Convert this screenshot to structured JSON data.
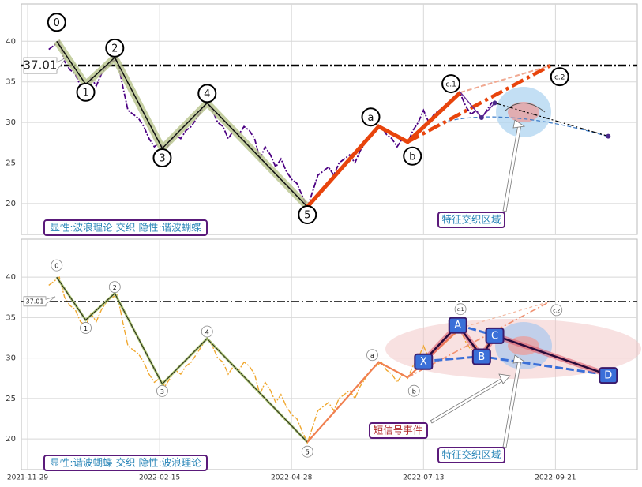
{
  "chart_data": [
    {
      "type": "line",
      "x": [
        8,
        10,
        12,
        14,
        16,
        18,
        20,
        22,
        24,
        26,
        28,
        30,
        32,
        34,
        36,
        38,
        40,
        42,
        44,
        46,
        48,
        50,
        52,
        54,
        56,
        58,
        60,
        62,
        64,
        66,
        68,
        70,
        72,
        74,
        76,
        78,
        80,
        82,
        84,
        86,
        88,
        90,
        92,
        94,
        96,
        98,
        100,
        102,
        104,
        106,
        108,
        110,
        112,
        114,
        116,
        118,
        120,
        122,
        124,
        126,
        128,
        130,
        132,
        134,
        136,
        138,
        140,
        142,
        144,
        146,
        148,
        150,
        152,
        154,
        156,
        158,
        160,
        162,
        164,
        166,
        168,
        170,
        172,
        174,
        176
      ],
      "series": [
        {
          "color": "#4b0082",
          "values": [
            39,
            39.5,
            40,
            37.5,
            36.5,
            36,
            34.5,
            34,
            35.5,
            34.5,
            36,
            37,
            37.5,
            37.8,
            34.5,
            31.5,
            31,
            30.5,
            29.5,
            28,
            27,
            27.5,
            26.5,
            27.5,
            28.5,
            28,
            29,
            29.5,
            30.5,
            31.5,
            32.5,
            31.5,
            30,
            29.5,
            28,
            29,
            28.5,
            29.5,
            29,
            28,
            25.5,
            27,
            26,
            24.5,
            25.5,
            24,
            23,
            22.5,
            21,
            19.5,
            21.5,
            23.5,
            24,
            24.5,
            23.5,
            25,
            25.5,
            26,
            25,
            26.5,
            27.5,
            28.5,
            29,
            29.5,
            28.5,
            28,
            27,
            28,
            27.5,
            29,
            30,
            31.5,
            30,
            31,
            31.5,
            32,
            32.5,
            33,
            33.5,
            32,
            31,
            31.5,
            30.5,
            31.5,
            32.5
          ]
        }
      ],
      "waves": {
        "labels": [
          "0",
          "1",
          "2",
          "3",
          "4",
          "5",
          "a",
          "b",
          "c.1",
          "c.2"
        ],
        "x": [
          11,
          22,
          33,
          51,
          68,
          106,
          133,
          144,
          164,
          198
        ],
        "values": [
          40,
          34.7,
          38,
          26.8,
          32.4,
          19.6,
          29.5,
          27.6,
          33.7,
          37
        ]
      },
      "harmonic": {
        "x": [
          164,
          172,
          177,
          220
        ],
        "values": [
          33.7,
          30.6,
          32.4,
          28.3
        ]
      },
      "level": 37.01,
      "notes": [
        "显性:波浪理论 交织 隐性:谐波蝴蝶",
        "特征交织区域"
      ],
      "xlim": [
        -2.4,
        231
      ],
      "ylim": [
        16.2,
        44.6
      ],
      "yticks": [
        20,
        25,
        30,
        35,
        40
      ],
      "xticks": [
        0,
        50,
        100,
        150,
        200
      ],
      "grid": true
    },
    {
      "type": "line",
      "x": [
        8,
        10,
        12,
        14,
        16,
        18,
        20,
        22,
        24,
        26,
        28,
        30,
        32,
        34,
        36,
        38,
        40,
        42,
        44,
        46,
        48,
        50,
        52,
        54,
        56,
        58,
        60,
        62,
        64,
        66,
        68,
        70,
        72,
        74,
        76,
        78,
        80,
        82,
        84,
        86,
        88,
        90,
        92,
        94,
        96,
        98,
        100,
        102,
        104,
        106,
        108,
        110,
        112,
        114,
        116,
        118,
        120,
        122,
        124,
        126,
        128,
        130,
        132,
        134,
        136,
        138,
        140,
        142,
        144,
        146,
        148,
        150,
        152,
        154,
        156,
        158,
        160,
        162,
        164,
        166,
        168,
        170,
        172,
        174,
        176
      ],
      "series": [
        {
          "color": "#f0a830",
          "values": [
            39,
            39.5,
            40,
            37.5,
            36.5,
            36,
            34.5,
            34,
            35.5,
            34.5,
            36,
            37,
            37.5,
            37.8,
            34.5,
            31.5,
            31,
            30.5,
            29.5,
            28,
            27,
            27.5,
            26.5,
            27.5,
            28.5,
            28,
            29,
            29.5,
            30.5,
            31.5,
            32.5,
            31.5,
            30,
            29.5,
            28,
            29,
            28.5,
            29.5,
            29,
            28,
            25.5,
            27,
            26,
            24.5,
            25.5,
            24,
            23,
            22.5,
            21,
            19.5,
            21.5,
            23.5,
            24,
            24.5,
            23.5,
            25,
            25.5,
            26,
            25,
            26.5,
            27.5,
            28.5,
            29,
            29.5,
            28.5,
            28,
            27,
            28,
            27.5,
            29,
            30,
            31.5,
            30,
            31,
            31.5,
            32,
            32.5,
            33,
            33.5,
            32,
            31,
            31.5,
            30.5,
            31.5,
            32.5
          ]
        }
      ],
      "waves": {
        "labels": [
          "0",
          "1",
          "2",
          "3",
          "4",
          "5",
          "a",
          "b",
          "c.1",
          "c.2"
        ],
        "x": [
          11,
          22,
          33,
          51,
          68,
          106,
          133,
          144,
          164,
          198
        ],
        "values": [
          40,
          34.7,
          38,
          26.8,
          32.4,
          19.6,
          29.5,
          27.6,
          33.7,
          37
        ]
      },
      "harmonic": {
        "labels": [
          "X",
          "A",
          "B",
          "C",
          "D"
        ],
        "x": [
          150,
          163,
          172,
          177,
          220
        ],
        "values": [
          29.6,
          34.1,
          30.2,
          32.8,
          27.9
        ]
      },
      "level": 37.01,
      "notes": [
        "显性:谐波蝴蝶 交织 隐性:波浪理论",
        "特征交织区域",
        "短信号事件"
      ],
      "xlim": [
        -2.4,
        231
      ],
      "ylim": [
        16.2,
        44.7
      ],
      "yticks": [
        20,
        25,
        30,
        35,
        40
      ],
      "xticks": [
        {
          "value": 0,
          "label": "2021-11-29"
        },
        {
          "value": 50,
          "label": "2022-02-15"
        },
        {
          "value": 100,
          "label": "2022-04-28"
        },
        {
          "value": 150,
          "label": "2022-07-13"
        },
        {
          "value": 200,
          "label": "2022-09-21"
        }
      ],
      "grid": true
    }
  ]
}
